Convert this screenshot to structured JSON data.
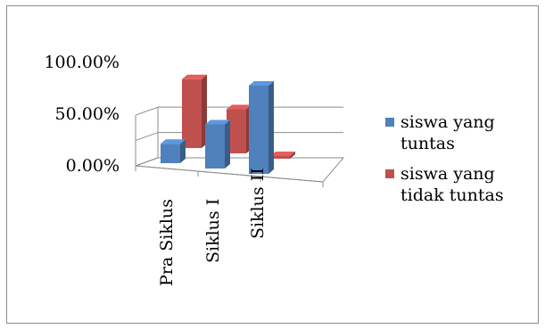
{
  "chart_data": {
    "type": "bar",
    "categories": [
      "Pra Siklus",
      "Siklus I",
      "Siklus II"
    ],
    "series": [
      {
        "name": "siswa yang tuntas",
        "values": [
          22,
          50,
          100
        ],
        "color": "#4f81bd"
      },
      {
        "name": "siswa yang tidak tuntas",
        "values": [
          78,
          50,
          0
        ],
        "color": "#c0504d"
      }
    ],
    "y_ticks": [
      "0.00%",
      "50.00%",
      "100.00%"
    ],
    "ylim": [
      0,
      100
    ],
    "legend_position": "right",
    "three_d": true
  },
  "legend": {
    "tuntas_lines": [
      "siswa yang",
      "tuntas"
    ],
    "tidak_tuntas_lines": [
      "siswa yang",
      "tidak tuntas"
    ]
  }
}
